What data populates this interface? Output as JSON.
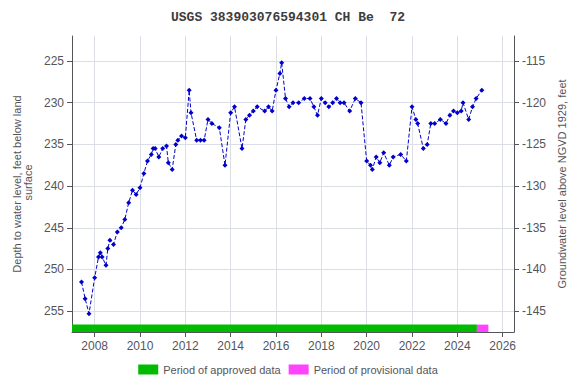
{
  "chart_data": {
    "type": "line",
    "title": "USGS 383903076594301 CH Be  72",
    "y_label": "Depth to water level, feet below land\n surface",
    "y2_label": "Groundwater level above NGVD 1929, feet",
    "xlim": [
      2007.0,
      2026.5
    ],
    "xticks": [
      2008,
      2010,
      2012,
      2014,
      2016,
      2018,
      2020,
      2022,
      2024,
      2026
    ],
    "ylim": [
      257.5,
      222.0
    ],
    "yticks": [
      225,
      230,
      235,
      240,
      245,
      250,
      255
    ],
    "y2lim": [
      -147.5,
      -112.0
    ],
    "y2ticks": [
      -115,
      -120,
      -125,
      -130,
      -135,
      -140,
      -145
    ],
    "grid": true,
    "color": "#0000CC",
    "marker": "diamond",
    "line_style": "dashed",
    "x": [
      2007.42,
      2007.58,
      2007.75,
      2008.0,
      2008.17,
      2008.25,
      2008.33,
      2008.5,
      2008.58,
      2008.67,
      2008.83,
      2009.0,
      2009.17,
      2009.33,
      2009.5,
      2009.67,
      2009.83,
      2010.0,
      2010.17,
      2010.33,
      2010.5,
      2010.58,
      2010.67,
      2010.83,
      2011.0,
      2011.17,
      2011.25,
      2011.42,
      2011.58,
      2011.67,
      2011.83,
      2012.0,
      2012.17,
      2012.25,
      2012.5,
      2012.67,
      2012.83,
      2013.0,
      2013.17,
      2013.5,
      2013.75,
      2014.0,
      2014.17,
      2014.5,
      2014.67,
      2014.83,
      2015.0,
      2015.17,
      2015.5,
      2015.67,
      2015.83,
      2016.0,
      2016.17,
      2016.25,
      2016.42,
      2016.58,
      2016.75,
      2017.0,
      2017.25,
      2017.5,
      2017.67,
      2017.83,
      2018.0,
      2018.17,
      2018.33,
      2018.5,
      2018.67,
      2018.83,
      2019.0,
      2019.25,
      2019.5,
      2019.75,
      2020.0,
      2020.17,
      2020.25,
      2020.42,
      2020.58,
      2020.75,
      2021.0,
      2021.17,
      2021.5,
      2021.75,
      2022.0,
      2022.17,
      2022.25,
      2022.5,
      2022.67,
      2022.83,
      2023.0,
      2023.25,
      2023.5,
      2023.67,
      2023.83,
      2024.0,
      2024.17,
      2024.25,
      2024.5,
      2024.67,
      2024.83,
      2025.08
    ],
    "values": [
      251.5,
      253.5,
      255.3,
      251.0,
      248.5,
      248.0,
      248.5,
      249.5,
      247.5,
      246.5,
      247.0,
      245.5,
      245.0,
      244.0,
      242.0,
      240.5,
      241.0,
      240.2,
      238.5,
      237.0,
      236.2,
      235.5,
      235.5,
      236.5,
      235.5,
      235.2,
      237.2,
      238.0,
      235.0,
      234.5,
      234.0,
      234.2,
      228.5,
      231.2,
      234.5,
      234.5,
      234.5,
      232.0,
      232.5,
      233.0,
      237.5,
      231.2,
      230.5,
      235.5,
      232.0,
      231.5,
      231.0,
      230.5,
      231.0,
      230.5,
      231.0,
      228.5,
      226.5,
      225.2,
      229.5,
      230.5,
      230.0,
      230.0,
      229.5,
      229.5,
      230.5,
      231.5,
      229.5,
      230.0,
      230.5,
      230.0,
      229.5,
      230.0,
      230.0,
      231.0,
      229.5,
      230.0,
      237.0,
      237.5,
      238.0,
      236.5,
      237.2,
      236.0,
      237.5,
      236.5,
      236.2,
      237.0,
      230.5,
      232.0,
      232.5,
      235.5,
      235.0,
      232.5,
      232.5,
      232.0,
      232.5,
      231.5,
      231.0,
      231.2,
      231.0,
      230.0,
      232.0,
      230.5,
      229.5,
      228.5
    ],
    "periods": [
      {
        "name": "Period of approved data",
        "color": "#00bb00",
        "start": 2007.0,
        "end": 2024.862
      },
      {
        "name": "Period of provisional data",
        "color": "#ff44ff",
        "start": 2024.862,
        "end": 2025.369
      }
    ]
  }
}
